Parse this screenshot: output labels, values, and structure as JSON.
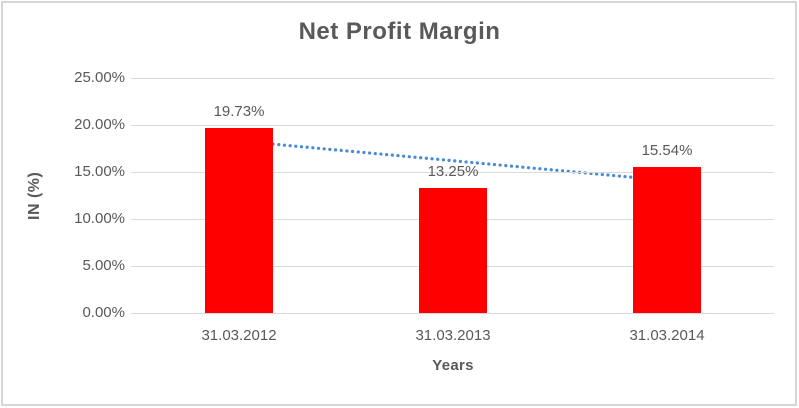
{
  "chart_data": {
    "type": "bar",
    "title": "Net Profit Margin",
    "xlabel": "Years",
    "ylabel": "IN (%)",
    "categories": [
      "31.03.2012",
      "31.03.2013",
      "31.03.2014"
    ],
    "values": [
      19.73,
      13.25,
      15.54
    ],
    "data_labels": [
      "19.73%",
      "13.25%",
      "15.54%"
    ],
    "ylim": [
      0,
      25
    ],
    "y_tick_step": 5,
    "y_tick_labels": [
      "0.00%",
      "5.00%",
      "10.00%",
      "15.00%",
      "20.00%",
      "25.00%"
    ],
    "grid": true,
    "legend": "none",
    "colors": {
      "bar": "#FF0000",
      "trendline": "#4A8CD3",
      "gridline": "#d9d9d9",
      "text": "#595959"
    },
    "trendline": {
      "style": "dotted",
      "shape": "linear",
      "start_value": 18.3,
      "end_value": 14.1
    }
  }
}
